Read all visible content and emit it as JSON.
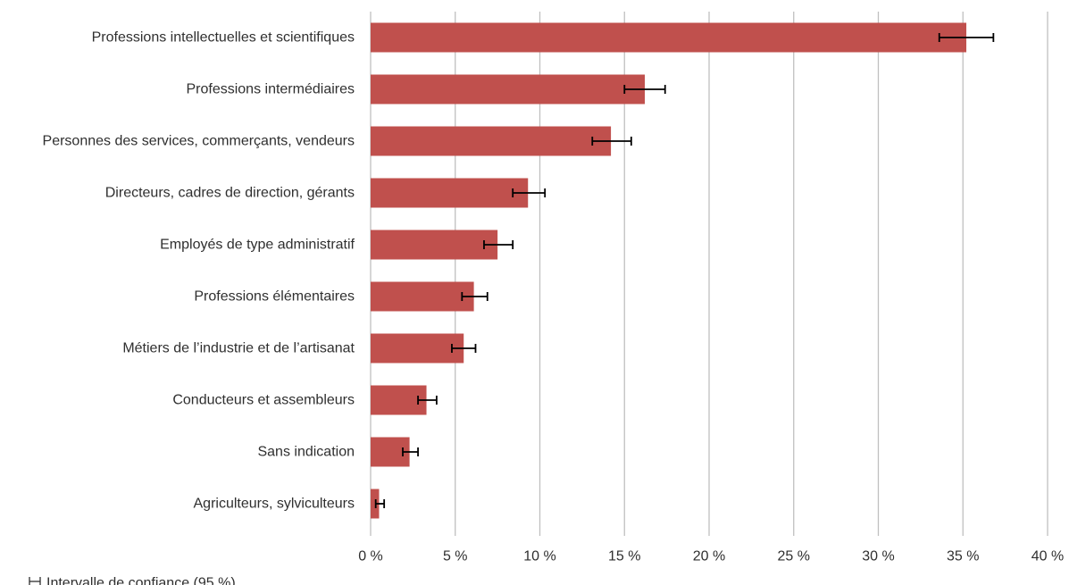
{
  "chart_data": {
    "type": "bar",
    "orientation": "horizontal",
    "categories": [
      "Professions intellectuelles et scientifiques",
      "Professions intermédiaires",
      "Personnes des services, commerçants, vendeurs",
      "Directeurs, cadres de direction, gérants",
      "Employés de type administratif",
      "Professions élémentaires",
      "Métiers de l’industrie et de l’artisanat",
      "Conducteurs et assembleurs",
      "Sans indication",
      "Agriculteurs, sylviculteurs"
    ],
    "series": [
      {
        "values": [
          35.2,
          16.2,
          14.2,
          9.3,
          7.5,
          6.1,
          5.5,
          3.3,
          2.3,
          0.5
        ],
        "ci_low": [
          33.6,
          15.0,
          13.1,
          8.4,
          6.7,
          5.4,
          4.8,
          2.8,
          1.9,
          0.3
        ],
        "ci_high": [
          36.8,
          17.4,
          15.4,
          10.3,
          8.4,
          6.9,
          6.2,
          3.9,
          2.8,
          0.8
        ],
        "color": "#c0504d"
      }
    ],
    "xlim": [
      0,
      40
    ],
    "x_ticks": [
      0,
      5,
      10,
      15,
      20,
      25,
      30,
      35,
      40
    ],
    "x_tick_labels": [
      "0 %",
      "5 %",
      "10 %",
      "15 %",
      "20 %",
      "25 %",
      "30 %",
      "35 %",
      "40 %"
    ],
    "grid": true,
    "grid_color": "#bfbfbf",
    "error_bar_color": "#000000",
    "legend": {
      "placement": "bottom-left",
      "items": [
        {
          "marker": "error-bar",
          "label": "Intervalle de confiance (95 %)"
        }
      ]
    }
  }
}
